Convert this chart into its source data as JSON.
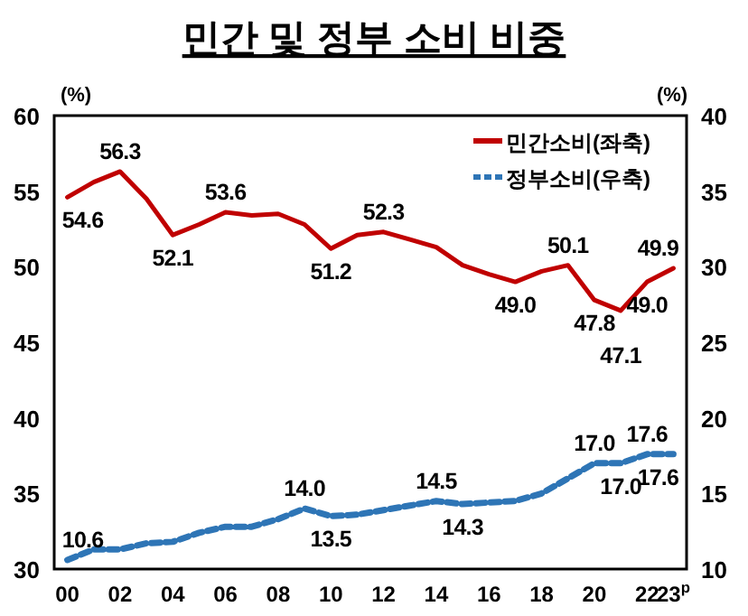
{
  "chart_data": {
    "type": "line",
    "title": "민간 및 정부 소비 비중",
    "ylabel": "(%)",
    "y2label": "(%)",
    "categories": [
      "00",
      null,
      "02",
      null,
      "04",
      null,
      "06",
      null,
      "08",
      null,
      "10",
      null,
      "12",
      null,
      "14",
      null,
      "16",
      null,
      "18",
      null,
      "20",
      null,
      "22",
      "23$^{p}$"
    ],
    "series": [
      {
        "name": "민간소비(좌축)",
        "color": "#c00000",
        "line_style": "solid",
        "values": [
          54.6,
          55.6,
          56.3,
          54.5,
          52.1,
          52.8,
          53.6,
          53.4,
          53.5,
          52.8,
          51.2,
          52.1,
          52.3,
          51.8,
          51.3,
          50.1,
          49.5,
          49.0,
          49.7,
          50.1,
          47.8,
          47.1,
          49.0,
          49.9
        ],
        "value_labels": [
          "54.6",
          null,
          "56.3",
          null,
          "52.1",
          null,
          "53.6",
          null,
          null,
          null,
          "51.2",
          null,
          "52.3",
          null,
          null,
          null,
          null,
          "49.0",
          null,
          "50.1",
          "47.8",
          "47.1",
          "49.0",
          "49.9"
        ]
      },
      {
        "name": "정부소비(우축)",
        "color": "#2e75b6",
        "line_style": "dashed",
        "axis": "y2",
        "values": [
          10.6,
          11.3,
          11.3,
          11.7,
          11.8,
          12.4,
          12.8,
          12.8,
          13.3,
          14.0,
          13.5,
          13.6,
          13.9,
          14.2,
          14.5,
          14.3,
          14.4,
          14.5,
          15.0,
          16.0,
          17.0,
          17.0,
          17.6,
          17.6
        ],
        "value_labels": [
          "10.6",
          null,
          null,
          null,
          null,
          null,
          null,
          null,
          null,
          "14.0",
          "13.5",
          null,
          null,
          null,
          "14.5",
          "14.3",
          null,
          null,
          null,
          null,
          "17.0",
          "17.0",
          "17.6",
          "17.6"
        ]
      }
    ],
    "ylim": [
      30,
      60
    ],
    "yticks": [
      30,
      35,
      40,
      45,
      50,
      55,
      60
    ],
    "y2lim": [
      10,
      40
    ],
    "y2ticks": [
      10,
      15,
      20,
      25,
      30,
      35,
      40
    ],
    "grid": false,
    "legend": "top right",
    "marker": "none"
  }
}
